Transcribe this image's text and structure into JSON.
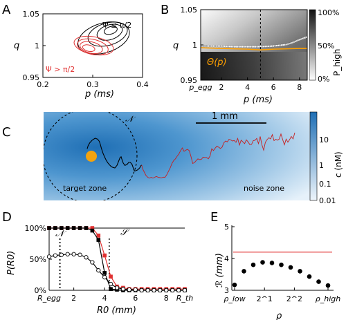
{
  "panels": {
    "A": {
      "letter": "A",
      "chart_data": {
        "type": "line",
        "xlabel": "p (ms)",
        "ylabel": "q",
        "xlim": [
          0.2,
          0.4
        ],
        "ylim": [
          0.95,
          1.05
        ],
        "xticks": [
          "0.2",
          "0.3",
          "0.4"
        ],
        "yticks": [
          "0.95",
          "1",
          "1.05"
        ],
        "annotations": [
          "Ψ ≤ π/2",
          "Ψ > π/2"
        ],
        "series": [
          {
            "color": "#000000",
            "rings": [
              {
                "cx": 0.322,
                "cy": 1.012,
                "rx": 0.055,
                "ry": 0.024,
                "phase": 0.35
              },
              {
                "cx": 0.33,
                "cy": 1.018,
                "rx": 0.042,
                "ry": 0.018,
                "phase": 0.35
              },
              {
                "cx": 0.334,
                "cy": 1.021,
                "rx": 0.027,
                "ry": 0.012,
                "phase": 0.35
              },
              {
                "cx": 0.336,
                "cy": 1.024,
                "rx": 0.014,
                "ry": 0.006,
                "phase": 0.35
              }
            ]
          },
          {
            "color": "#e03030",
            "rings": [
              {
                "cx": 0.302,
                "cy": 1.0,
                "rx": 0.042,
                "ry": 0.014,
                "phase": -0.35
              },
              {
                "cx": 0.3,
                "cy": 0.998,
                "rx": 0.033,
                "ry": 0.012,
                "phase": -0.35
              },
              {
                "cx": 0.297,
                "cy": 0.997,
                "rx": 0.024,
                "ry": 0.009,
                "phase": -0.35
              },
              {
                "cx": 0.292,
                "cy": 0.996,
                "rx": 0.013,
                "ry": 0.005,
                "phase": -0.35
              }
            ]
          }
        ]
      }
    },
    "B": {
      "letter": "B",
      "chart_data": {
        "type": "heatmap",
        "xlabel": "p (ms)",
        "ylabel": "q",
        "xlim": [
          0.4,
          8.6
        ],
        "ylim": [
          0.95,
          1.05
        ],
        "xticks": [
          "p_egg",
          "2",
          "4",
          "6",
          "8"
        ],
        "xtick_values": [
          0.4,
          2,
          4,
          6,
          8
        ],
        "yticks": [
          "0.95",
          "1",
          "1.05"
        ],
        "colorbar": {
          "label": "P_high",
          "ticks": [
            "0%",
            "50%",
            "100%"
          ]
        },
        "curve_label": "Θ(p)",
        "dashed_x": 5,
        "theta_curve": {
          "x": [
            0.4,
            2,
            4,
            5,
            6,
            8,
            8.6
          ],
          "y": [
            0.996,
            0.995,
            0.994,
            0.993,
            0.994,
            0.995,
            0.995
          ]
        },
        "transition": {
          "x": [
            0.4,
            1,
            2,
            3,
            4,
            5,
            6,
            7,
            7.5,
            8,
            8.6
          ],
          "y": [
            0.997,
            0.997,
            0.997,
            0.996,
            0.996,
            0.996,
            0.997,
            0.999,
            1.002,
            1.006,
            1.01
          ]
        }
      }
    },
    "C": {
      "letter": "C",
      "scale_bar_label": "1 mm",
      "boundary_label": "𝒩",
      "target_label": "target zone",
      "noise_label": "noise zone",
      "colorbar": {
        "label": "c (nM)",
        "ticks": [
          "10",
          "1",
          "0.1",
          "0.01"
        ]
      },
      "chart_data": {
        "type": "line",
        "path_black": {
          "x": [
            0,
            0.5,
            1.5,
            3,
            4.6,
            6,
            7,
            7.6,
            8.2,
            9,
            10,
            11,
            12,
            13,
            14,
            15,
            16,
            17.2,
            18.2,
            19,
            19.6,
            20,
            20.8,
            21.8,
            23,
            24,
            25,
            26,
            26.6,
            27,
            27.6,
            28.2,
            29,
            29.8,
            30.4,
            31,
            31.5
          ],
          "y": [
            -0.5,
            1.2,
            3,
            4.6,
            5.6,
            5.1,
            3.8,
            2,
            -0.2,
            -2.7,
            -5.1,
            -7.2,
            -8.7,
            -9.9,
            -10.9,
            -11.3,
            -11.6,
            -10.1,
            -7.6,
            -5.6,
            -5.1,
            -6.4,
            -8.7,
            -10.1,
            -9.6,
            -8.4,
            -8.4,
            -9.7,
            -11.5,
            -12.8,
            -13.4,
            -13.1,
            -12.8,
            -12.1,
            -11.5,
            -10.3,
            -9.9
          ]
        },
        "path_red": {
          "x": [
            31.5,
            32,
            33,
            34,
            35,
            36,
            37,
            38,
            39,
            40,
            41,
            42,
            43,
            44,
            45,
            46,
            47,
            48,
            49,
            50,
            51,
            52,
            53,
            54,
            55,
            56,
            57,
            58,
            59,
            60,
            61,
            62,
            63,
            64,
            65,
            66,
            67,
            68,
            69,
            70,
            71,
            72,
            73,
            74,
            75,
            76,
            77,
            78,
            79,
            80,
            81,
            82,
            83,
            84,
            85,
            86,
            87,
            88,
            89,
            90,
            91,
            92,
            93,
            94,
            95,
            96,
            97,
            98,
            99,
            100,
            101,
            102,
            103,
            104,
            105,
            106,
            107,
            108,
            109,
            110,
            111,
            112,
            113,
            114,
            115,
            116,
            117,
            118,
            119,
            120
          ],
          "y": [
            -9.9,
            -12,
            -14,
            -16,
            -17,
            -17.5,
            -17,
            -17.5,
            -17,
            -16.5,
            -17,
            -17.2,
            -17.3,
            -16.9,
            -17,
            -15.5,
            -13.5,
            -11.5,
            -9,
            -7.3,
            -6.3,
            -4.8,
            -3.5,
            -1.5,
            0,
            -2,
            -1.3,
            -0.8,
            -1.6,
            -5,
            -9,
            -8.5,
            -7.3,
            -6.3,
            -6.8,
            -6.6,
            -5.4,
            -5.5,
            -5.5,
            -6.3,
            -4.7,
            -0.5,
            -1.5,
            -0.1,
            1,
            0.4,
            -0.3,
            0.5,
            3,
            4,
            3.5,
            5,
            4.6,
            4,
            4.3,
            3.2,
            5.5,
            1.7,
            4.5,
            3.5,
            2.5,
            4.7,
            3.5,
            1.9,
            2,
            4.2,
            4.4,
            5.5,
            2.5,
            6.6,
            1.8,
            -1.3,
            3.3,
            4.8,
            5.9,
            5.2,
            7.7,
            4.2,
            5,
            4.5,
            5.1,
            8.1,
            4.8,
            1.8,
            5.1,
            3.3,
            4.8,
            6.6,
            5.2,
            8.8
          ]
        }
      }
    },
    "D": {
      "letter": "D",
      "chart_data": {
        "type": "line",
        "xlabel": "R0 (mm)",
        "ylabel": "P(R0)",
        "xlim": [
          0.4,
          9.2
        ],
        "ylim": [
          0,
          100
        ],
        "xticks": [
          "R_egg",
          "2",
          "4",
          "6",
          "8",
          "R_th"
        ],
        "xtick_values": [
          0.4,
          2,
          4,
          6,
          8,
          9.2
        ],
        "yticks": [
          "0%",
          "50%",
          "100%"
        ],
        "vlines": [
          {
            "x": 1.1,
            "label": "𝒩"
          },
          {
            "x": 4.3,
            "label": "𝒮"
          }
        ],
        "series": [
          {
            "color": "#e03030",
            "marker": "square",
            "x": [
              0.4,
              0.8,
              1.2,
              1.6,
              2,
              2.4,
              2.8,
              3.2,
              3.6,
              4,
              4.4,
              4.8,
              5.2,
              5.6,
              6,
              6.4,
              6.8,
              7.2,
              7.6,
              8,
              8.4,
              8.8,
              9.2
            ],
            "y": [
              100,
              100,
              100,
              100,
              100,
              100,
              100,
              100,
              88,
              56,
              22,
              6,
              4,
              2,
              2,
              2,
              2,
              2,
              2,
              2,
              2,
              2,
              2
            ]
          },
          {
            "color": "#000000",
            "marker": "square",
            "x": [
              0.4,
              0.8,
              1.2,
              1.6,
              2,
              2.4,
              2.8,
              3.2,
              3.6,
              4,
              4.4,
              4.8,
              5.2,
              5.6,
              6,
              6.4,
              6.8,
              7.2,
              7.6,
              8,
              8.4,
              8.8,
              9.2
            ],
            "y": [
              100,
              100,
              100,
              100,
              100,
              100,
              100,
              96,
              81,
              28,
              2,
              1,
              0,
              0,
              0,
              0,
              0,
              0,
              0,
              0,
              0,
              0,
              0
            ]
          },
          {
            "color": "#000000",
            "marker": "circle-open",
            "x": [
              0.4,
              0.8,
              1.2,
              1.6,
              2,
              2.4,
              2.8,
              3.2,
              3.6,
              4,
              4.4,
              4.8,
              5.2,
              5.6,
              6,
              6.4,
              6.8,
              7.2,
              7.6,
              8,
              8.4,
              8.8,
              9.2
            ],
            "y": [
              54,
              56,
              57,
              58,
              58,
              57,
              53,
              45,
              32,
              21,
              10,
              4,
              2,
              1,
              1,
              0,
              0,
              0,
              0,
              0,
              0,
              0,
              0
            ]
          }
        ]
      }
    },
    "E": {
      "letter": "E",
      "chart_data": {
        "type": "scatter",
        "xlabel": "ρ",
        "ylabel": "ℛ (mm)",
        "xlim": [
          0,
          10
        ],
        "ylim": [
          3,
          5
        ],
        "xticks": [
          "ρ_low",
          "2^1",
          "2^2",
          "ρ_high"
        ],
        "xtick_values": [
          0,
          3.2,
          6.4,
          10
        ],
        "yticks": [
          "3",
          "4",
          "5"
        ],
        "hline": {
          "y": 4.2,
          "color": "#e03030"
        },
        "x": [
          0,
          1,
          2,
          3,
          4,
          5,
          6,
          7,
          8,
          9,
          10
        ],
        "y": [
          3.17,
          3.6,
          3.8,
          3.88,
          3.86,
          3.8,
          3.72,
          3.6,
          3.43,
          3.27,
          3.15
        ]
      }
    }
  }
}
